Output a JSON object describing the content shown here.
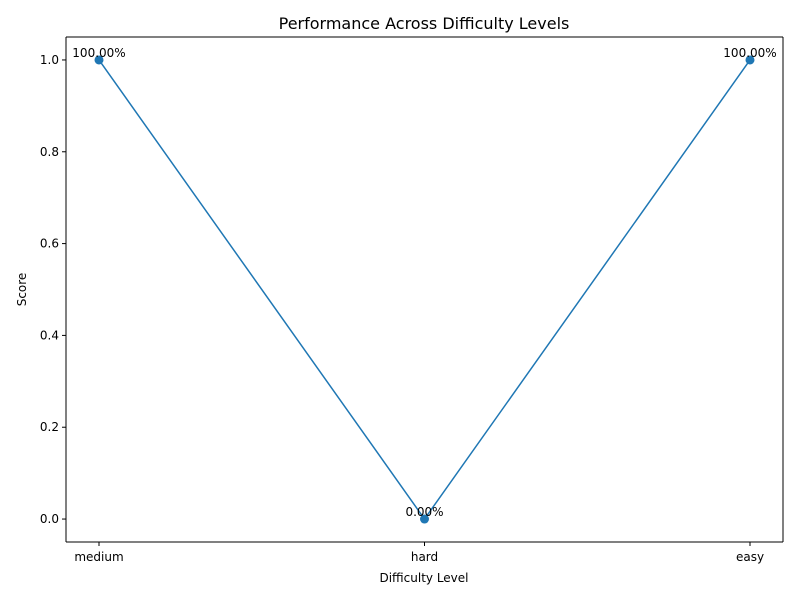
{
  "chart_data": {
    "type": "line",
    "title": "Performance Across Difficulty Levels",
    "xlabel": "Difficulty Level",
    "ylabel": "Score",
    "categories": [
      "medium",
      "hard",
      "easy"
    ],
    "series": [
      {
        "values": [
          1.0,
          0.0,
          1.0
        ],
        "labels": [
          "100.00%",
          "0.00%",
          "100.00%"
        ],
        "color": "#1f77b4",
        "marker": "circle"
      }
    ],
    "ylim": [
      -0.05,
      1.05
    ],
    "yticks": [
      0.0,
      0.2,
      0.4,
      0.6,
      0.8,
      1.0
    ],
    "ytick_labels": [
      "0.0",
      "0.2",
      "0.4",
      "0.6",
      "0.8",
      "1.0"
    ],
    "grid": false,
    "legend": "none"
  }
}
